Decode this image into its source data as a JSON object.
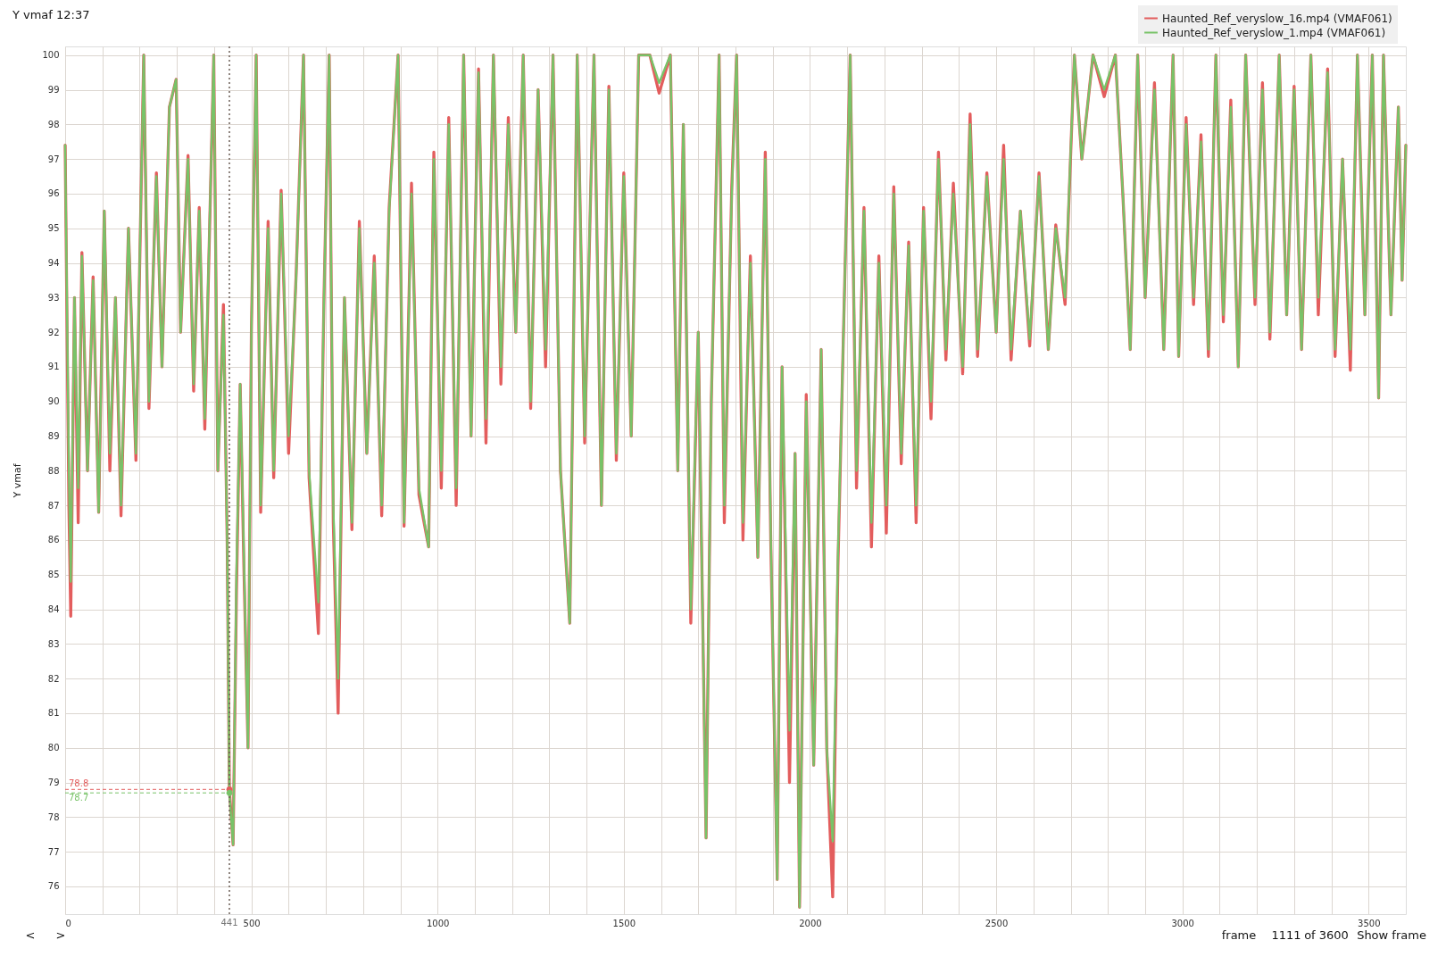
{
  "chart_data": {
    "type": "line",
    "title": "Y vmaf 12:37",
    "ylabel": "Y vmaf",
    "x": [
      0,
      10,
      15,
      25,
      35,
      45,
      60,
      75,
      90,
      105,
      120,
      135,
      150,
      170,
      190,
      211,
      225,
      245,
      260,
      280,
      298,
      310,
      330,
      345,
      360,
      375,
      399,
      410,
      425,
      435,
      441,
      451,
      460,
      470,
      480,
      491,
      500,
      513,
      525,
      545,
      560,
      580,
      600,
      620,
      640,
      655,
      680,
      695,
      709,
      720,
      733,
      750,
      770,
      790,
      810,
      830,
      850,
      870,
      894,
      910,
      930,
      950,
      976,
      990,
      1010,
      1030,
      1050,
      1070,
      1090,
      1110,
      1130,
      1150,
      1170,
      1190,
      1210,
      1230,
      1250,
      1270,
      1290,
      1310,
      1330,
      1355,
      1375,
      1395,
      1420,
      1440,
      1460,
      1480,
      1500,
      1520,
      1540,
      1570,
      1595,
      1625,
      1645,
      1660,
      1680,
      1700,
      1721,
      1735,
      1756,
      1770,
      1790,
      1803,
      1820,
      1840,
      1860,
      1880,
      1895,
      1912,
      1925,
      1945,
      1960,
      1972,
      1990,
      2010,
      2030,
      2045,
      2061,
      2075,
      2090,
      2108,
      2125,
      2145,
      2165,
      2185,
      2205,
      2225,
      2245,
      2265,
      2285,
      2305,
      2325,
      2345,
      2365,
      2385,
      2410,
      2430,
      2450,
      2475,
      2500,
      2520,
      2540,
      2565,
      2590,
      2615,
      2640,
      2660,
      2685,
      2710,
      2730,
      2760,
      2790,
      2820,
      2840,
      2860,
      2880,
      2900,
      2925,
      2950,
      2975,
      2990,
      3010,
      3030,
      3050,
      3070,
      3090,
      3110,
      3130,
      3150,
      3170,
      3195,
      3215,
      3235,
      3260,
      3280,
      3300,
      3320,
      3345,
      3365,
      3390,
      3410,
      3430,
      3451,
      3470,
      3490,
      3510,
      3527,
      3540,
      3560,
      3580,
      3590,
      3600
    ],
    "series": [
      {
        "name": "Haunted_Ref_veryslow_16.mp4 (VMAF061)",
        "color": "#e35d5d",
        "values": [
          97.4,
          87,
          83.8,
          93,
          86.5,
          94.3,
          88,
          93.6,
          86.8,
          95.5,
          88,
          93,
          86.7,
          95,
          88.3,
          100,
          89.8,
          96.6,
          91,
          98.5,
          99.3,
          92,
          97.1,
          90.3,
          95.6,
          89.2,
          100,
          88,
          92.8,
          86,
          78.8,
          77.2,
          84.5,
          90.5,
          85.2,
          80,
          92,
          100,
          86.8,
          95.2,
          87.8,
          96.1,
          88.5,
          93.6,
          100,
          87.8,
          83.3,
          93,
          100,
          86.5,
          81,
          93,
          86.3,
          95.2,
          88.5,
          94.2,
          86.7,
          95.6,
          100,
          86.4,
          96.3,
          87.3,
          85.8,
          97.2,
          87.5,
          98.2,
          87,
          100,
          89,
          99.6,
          88.8,
          100,
          90.5,
          98.2,
          92,
          100,
          89.8,
          99,
          91,
          100,
          88,
          83.6,
          100,
          88.8,
          100,
          87,
          99.1,
          88.3,
          96.6,
          89,
          100,
          100,
          98.9,
          100,
          88,
          98,
          83.6,
          92,
          77.4,
          90,
          100,
          86.5,
          96.2,
          100,
          86,
          94.2,
          85.5,
          97.2,
          85.8,
          76.2,
          91,
          79,
          88.5,
          75.4,
          90.2,
          79.5,
          91.5,
          80,
          75.7,
          85.2,
          92,
          100,
          87.5,
          95.6,
          85.8,
          94.2,
          86.2,
          96.2,
          88.2,
          94.6,
          86.5,
          95.6,
          89.5,
          97.2,
          91.2,
          96.3,
          90.8,
          98.3,
          91.3,
          96.6,
          92,
          97.4,
          91.2,
          95.5,
          91.6,
          96.6,
          91.5,
          95.1,
          92.8,
          100,
          97,
          100,
          98.8,
          100,
          96,
          91.5,
          100,
          93,
          99.2,
          91.5,
          100,
          91.3,
          98.2,
          92.8,
          97.7,
          91.3,
          100,
          92.3,
          98.7,
          91,
          100,
          92.8,
          99.2,
          91.8,
          100,
          92.5,
          99.1,
          91.5,
          100,
          92.5,
          99.6,
          91.3,
          97,
          90.9,
          100,
          92.5,
          100,
          90.1,
          100,
          92.5,
          98.5,
          93.5,
          97.4
        ]
      },
      {
        "name": "Haunted_Ref_veryslow_1.mp4 (VMAF061)",
        "color": "#78c368",
        "values": [
          97.4,
          88,
          84.8,
          93,
          87.5,
          94.2,
          88,
          93.5,
          86.8,
          95.5,
          88.5,
          93,
          87,
          95,
          88.5,
          100,
          90,
          96.5,
          91,
          98.5,
          99.3,
          92,
          97,
          90.5,
          95.5,
          89.5,
          100,
          88,
          92.5,
          86,
          78.7,
          77.2,
          85,
          90.5,
          85.5,
          80,
          92,
          100,
          87,
          95,
          88,
          96,
          89,
          93.5,
          100,
          88,
          84.2,
          93,
          100,
          87,
          82,
          93,
          86.5,
          95,
          88.5,
          94,
          87,
          95.5,
          100,
          86.5,
          96,
          87.5,
          85.8,
          97,
          88,
          98,
          87.5,
          100,
          89,
          99.5,
          89.5,
          100,
          91,
          98,
          92,
          100,
          90,
          99,
          91.5,
          100,
          88,
          83.6,
          100,
          89,
          100,
          87,
          99,
          88.5,
          96.5,
          89,
          100,
          100,
          99.2,
          100,
          88,
          98,
          84,
          92,
          77.4,
          90,
          100,
          87,
          96,
          100,
          86.5,
          94,
          85.5,
          97,
          86,
          76.2,
          91,
          80.5,
          88.5,
          75.4,
          90,
          79.5,
          91.5,
          80,
          77.3,
          85.5,
          92,
          100,
          88,
          95.5,
          86.5,
          94,
          87,
          96,
          88.5,
          94.5,
          87,
          95.5,
          90,
          97,
          91.5,
          96,
          91,
          98,
          91.5,
          96.5,
          92,
          97,
          91.5,
          95.5,
          91.8,
          96.5,
          91.5,
          95,
          93,
          100,
          97,
          100,
          99,
          100,
          96,
          91.5,
          100,
          93,
          99,
          91.5,
          100,
          91.3,
          98,
          93,
          97.5,
          91.5,
          100,
          92.5,
          98.5,
          91,
          100,
          93,
          99,
          92,
          100,
          92.5,
          99,
          91.5,
          100,
          93,
          99.5,
          91.5,
          97,
          91.5,
          100,
          92.5,
          100,
          90.1,
          100,
          92.5,
          98.5,
          93.5,
          97.4
        ]
      }
    ],
    "xlim": [
      0,
      3600
    ],
    "ylim": [
      75.2,
      100.25
    ],
    "xticks": [
      0,
      {
        "value": 100,
        "label": null
      },
      {
        "value": 200,
        "label": null
      },
      {
        "value": 300,
        "label": null
      },
      {
        "value": 400,
        "label": null
      },
      500,
      {
        "value": 600,
        "label": null
      },
      {
        "value": 700,
        "label": null
      },
      {
        "value": 800,
        "label": null
      },
      {
        "value": 900,
        "label": null
      },
      1000,
      {
        "value": 1100,
        "label": null
      },
      {
        "value": 1200,
        "label": null
      },
      {
        "value": 1300,
        "label": null
      },
      {
        "value": 1400,
        "label": null
      },
      1500,
      {
        "value": 1600,
        "label": null
      },
      {
        "value": 1700,
        "label": null
      },
      {
        "value": 1800,
        "label": null
      },
      {
        "value": 1900,
        "label": null
      },
      2000,
      {
        "value": 2100,
        "label": null
      },
      {
        "value": 2200,
        "label": null
      },
      {
        "value": 2300,
        "label": null
      },
      {
        "value": 2400,
        "label": null
      },
      2500,
      {
        "value": 2600,
        "label": null
      },
      {
        "value": 2700,
        "label": null
      },
      {
        "value": 2800,
        "label": null
      },
      {
        "value": 2900,
        "label": null
      },
      3000,
      {
        "value": 3100,
        "label": null
      },
      {
        "value": 3200,
        "label": null
      },
      {
        "value": 3300,
        "label": null
      },
      {
        "value": 3400,
        "label": null
      },
      3500
    ],
    "yticks": [
      76,
      77,
      78,
      79,
      80,
      81,
      82,
      83,
      84,
      85,
      86,
      87,
      88,
      89,
      90,
      91,
      92,
      93,
      94,
      95,
      96,
      97,
      98,
      99,
      100
    ],
    "grid": true,
    "legend": "top right",
    "ref_lines": [
      {
        "axis": "x",
        "value": 441,
        "label": "441",
        "color": "#6b5d55",
        "line_style": "dotted"
      }
    ],
    "annotations": [
      {
        "text": "78.8",
        "x": 441,
        "y": 78.8
      },
      {
        "text": "78.7",
        "x": 441,
        "y": 78.7
      },
      "<",
      ">",
      "frame",
      "1111",
      "of 3600",
      "Show frame"
    ]
  }
}
